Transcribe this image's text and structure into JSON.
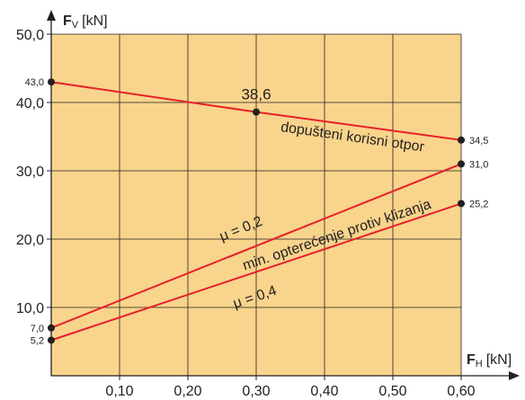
{
  "chart_data": {
    "type": "line",
    "xlabel": {
      "symbol": "F",
      "subscript": "H",
      "unit": "[kN]"
    },
    "ylabel": {
      "symbol": "F",
      "subscript": "V",
      "unit": "[kN]"
    },
    "xlim": [
      0,
      0.6
    ],
    "ylim": [
      0,
      50
    ],
    "x_ticks": [
      {
        "value": 0.1,
        "label": "0,10"
      },
      {
        "value": 0.2,
        "label": "0,20"
      },
      {
        "value": 0.3,
        "label": "0,30"
      },
      {
        "value": 0.4,
        "label": "0,40"
      },
      {
        "value": 0.5,
        "label": "0,50"
      },
      {
        "value": 0.6,
        "label": "0,60"
      }
    ],
    "y_ticks": [
      {
        "value": 10,
        "label": "10,0"
      },
      {
        "value": 20,
        "label": "20,0"
      },
      {
        "value": 30,
        "label": "30,0"
      },
      {
        "value": 40,
        "label": "40,0"
      },
      {
        "value": 50,
        "label": "50,0"
      }
    ],
    "grid": true,
    "colors": {
      "background": "#f8d48c",
      "line": "#e8202a",
      "grid": "#231f20",
      "point": "#231f20"
    },
    "series": [
      {
        "points": [
          {
            "x": 0,
            "y": 43.0,
            "label": "43,0",
            "label_size": "small"
          },
          {
            "x": 0.3,
            "y": 38.6,
            "label": "38,6",
            "label_size": "large"
          },
          {
            "x": 0.6,
            "y": 34.5,
            "label": "34,5",
            "label_size": "small"
          }
        ]
      },
      {
        "points": [
          {
            "x": 0,
            "y": 7.0,
            "label": "7,0",
            "label_size": "small"
          },
          {
            "x": 0.6,
            "y": 31.0,
            "label": "31,0",
            "label_size": "small"
          }
        ]
      },
      {
        "points": [
          {
            "x": 0,
            "y": 5.2,
            "label": "5,2",
            "label_size": "small"
          },
          {
            "x": 0.6,
            "y": 25.2,
            "label": "25,2",
            "label_size": "small"
          }
        ]
      }
    ],
    "annotations": [
      {
        "text": "dopušteni korisni otpor",
        "x": 0.44,
        "y": 34.3,
        "series": 0
      },
      {
        "text": "μ = 0,2",
        "x": 0.28,
        "y": 20.9,
        "series": 1
      },
      {
        "text": "min. opterećenje protiv klizanja",
        "x": 0.42,
        "y": 20.0,
        "series": 2
      },
      {
        "text": "μ = 0,4",
        "x": 0.3,
        "y": 10.9,
        "series": 2
      }
    ]
  }
}
